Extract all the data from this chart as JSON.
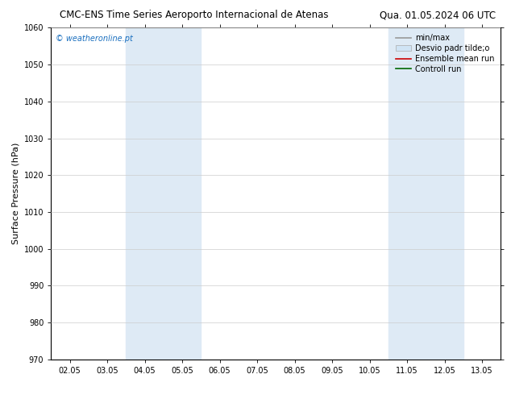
{
  "title_left": "CMC-ENS Time Series Aeroporto Internacional de Atenas",
  "title_right": "Qua. 01.05.2024 06 UTC",
  "ylabel": "Surface Pressure (hPa)",
  "ylim": [
    970,
    1060
  ],
  "yticks": [
    970,
    980,
    990,
    1000,
    1010,
    1020,
    1030,
    1040,
    1050,
    1060
  ],
  "xtick_labels": [
    "02.05",
    "03.05",
    "04.05",
    "05.05",
    "06.05",
    "07.05",
    "08.05",
    "09.05",
    "10.05",
    "11.05",
    "12.05",
    "13.05"
  ],
  "xtick_positions": [
    0,
    1,
    2,
    3,
    4,
    5,
    6,
    7,
    8,
    9,
    10,
    11
  ],
  "xlim": [
    -0.5,
    11.5
  ],
  "shaded_regions": [
    {
      "xmin": 1.5,
      "xmax": 3.5,
      "color": "#deeaf5"
    },
    {
      "xmin": 8.5,
      "xmax": 10.5,
      "color": "#deeaf5"
    }
  ],
  "watermark": "© weatheronline.pt",
  "watermark_color": "#1a6fbf",
  "watermark_fontsize": 7,
  "legend_entries": [
    {
      "label": "min/max",
      "color": "#999999",
      "lw": 1.2,
      "type": "line"
    },
    {
      "label": "Desvio padr tilde;o",
      "color": "#d0e4f5",
      "lw": 5,
      "type": "patch"
    },
    {
      "label": "Ensemble mean run",
      "color": "#cc0000",
      "lw": 1.2,
      "type": "line"
    },
    {
      "label": "Controll run",
      "color": "#006600",
      "lw": 1.2,
      "type": "line"
    }
  ],
  "bg_color": "#ffffff",
  "spine_color": "#000000",
  "grid_color": "#cccccc",
  "title_fontsize": 8.5,
  "axis_label_fontsize": 8,
  "tick_fontsize": 7,
  "legend_fontsize": 7
}
